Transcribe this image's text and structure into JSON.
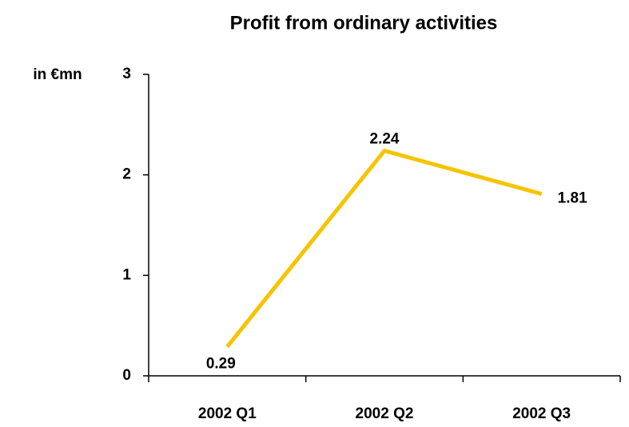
{
  "chart_data": {
    "type": "line",
    "title": "Profit from ordinary activities",
    "y_label": "in €mn",
    "categories": [
      "2002 Q1",
      "2002 Q2",
      "2002 Q3"
    ],
    "series": [
      {
        "name": "Profit from ordinary activities",
        "color": "#f5c400",
        "values": [
          0.29,
          2.24,
          1.81
        ]
      }
    ],
    "ylim": [
      0,
      3
    ],
    "yticks": [
      0,
      1,
      2,
      3
    ]
  }
}
